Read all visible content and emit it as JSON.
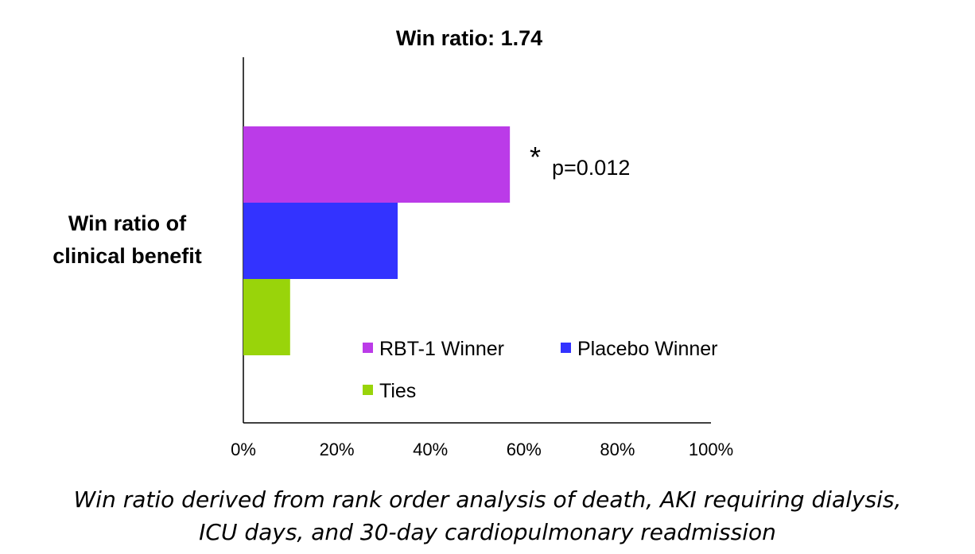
{
  "chart_data": {
    "type": "bar",
    "orientation": "horizontal",
    "title": "Win ratio: 1.74",
    "category_label": [
      "Win ratio of",
      "clinical benefit"
    ],
    "series": [
      {
        "name": "RBT-1 Winner",
        "value": 57,
        "color": "#bb3be8"
      },
      {
        "name": "Placebo Winner",
        "value": 33,
        "color": "#3333ff"
      },
      {
        "name": "Ties",
        "value": 10,
        "color": "#99d40a"
      }
    ],
    "xlim": [
      0,
      100
    ],
    "x_ticks": [
      "0%",
      "20%",
      "40%",
      "60%",
      "80%",
      "100%"
    ],
    "annotation": {
      "star": "*",
      "text": "p=0.012"
    },
    "grid": false,
    "legend_placement": "inside-bottom-right"
  },
  "caption": {
    "line1": "Win ratio derived from rank order analysis of death, AKI requiring dialysis,",
    "line2": "ICU days, and 30-day cardiopulmonary readmission"
  }
}
